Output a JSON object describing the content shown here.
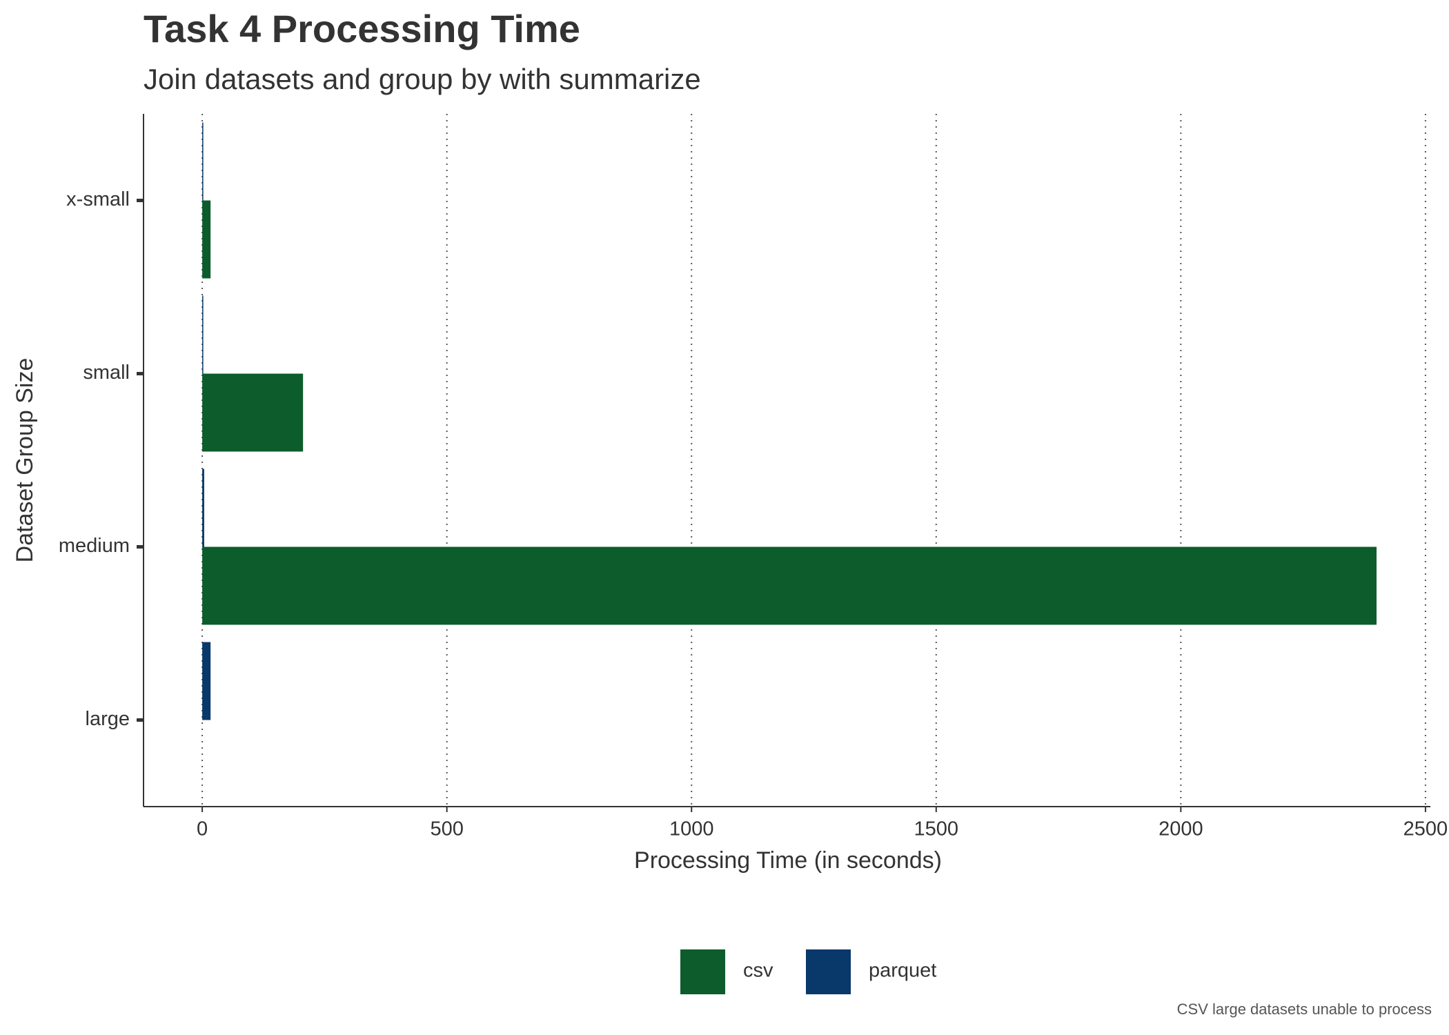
{
  "chart_data": {
    "type": "bar",
    "orientation": "horizontal",
    "title": "Task 4 Processing Time",
    "subtitle": "Join datasets and group by with summarize",
    "x_label": "Processing Time (in seconds)",
    "y_label": "Dataset Group Size",
    "caption": "CSV large datasets unable to process",
    "categories": [
      "x-small",
      "small",
      "medium",
      "large"
    ],
    "series": [
      {
        "name": "csv",
        "color": "#0d5c2c",
        "values": [
          17,
          206,
          2400,
          null
        ]
      },
      {
        "name": "parquet",
        "color": "#09386b",
        "values": [
          2,
          2,
          4,
          17
        ]
      }
    ],
    "xlim": [
      -120,
      2510
    ],
    "xticks": [
      0,
      500,
      1000,
      1500,
      2000,
      2500
    ],
    "grid": true,
    "legend": "bottom"
  }
}
